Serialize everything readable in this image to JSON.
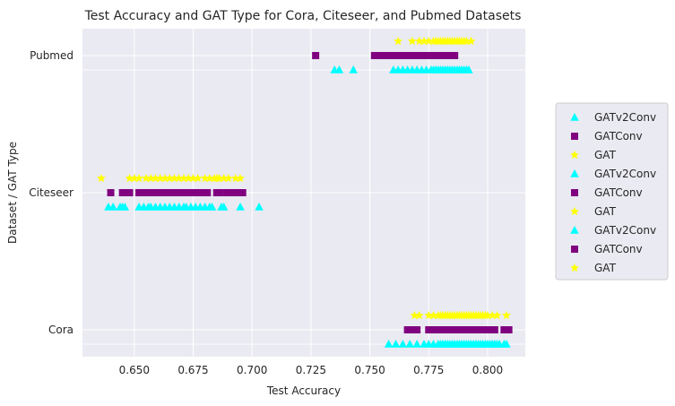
{
  "chart_data": {
    "type": "scatter",
    "title": "Test Accuracy and GAT Type for Cora, Citeseer, and Pubmed Datasets",
    "xlabel": "Test Accuracy",
    "ylabel": "Dataset / GAT Type",
    "xlim": [
      0.628,
      0.816
    ],
    "x_ticks": [
      0.65,
      0.675,
      0.7,
      0.725,
      0.75,
      0.775,
      0.8
    ],
    "x_tick_labels": [
      "0.650",
      "0.675",
      "0.700",
      "0.725",
      "0.750",
      "0.775",
      "0.800"
    ],
    "categories": [
      "Cora",
      "Citeseer",
      "Pubmed"
    ],
    "grid": true,
    "background": "#eaeaf2",
    "legend_position": "right",
    "series": [
      {
        "name": "GATv2Conv",
        "dataset": "Cora",
        "marker": "triangle",
        "color": "#00ffff",
        "offset": -1,
        "x": [
          0.758,
          0.761,
          0.764,
          0.767,
          0.77,
          0.773,
          0.775,
          0.777,
          0.779,
          0.78,
          0.781,
          0.782,
          0.783,
          0.784,
          0.785,
          0.786,
          0.787,
          0.788,
          0.789,
          0.79,
          0.791,
          0.792,
          0.793,
          0.794,
          0.795,
          0.796,
          0.797,
          0.798,
          0.799,
          0.8,
          0.801,
          0.802,
          0.803,
          0.804,
          0.805,
          0.807,
          0.808
        ]
      },
      {
        "name": "GATConv",
        "dataset": "Cora",
        "marker": "square",
        "color": "#800080",
        "offset": 0,
        "x": [
          0.766,
          0.767,
          0.768,
          0.769,
          0.77,
          0.775,
          0.776,
          0.777,
          0.778,
          0.779,
          0.78,
          0.781,
          0.782,
          0.783,
          0.784,
          0.785,
          0.786,
          0.787,
          0.788,
          0.789,
          0.79,
          0.791,
          0.792,
          0.793,
          0.794,
          0.795,
          0.796,
          0.797,
          0.798,
          0.799,
          0.8,
          0.801,
          0.802,
          0.803,
          0.807,
          0.808,
          0.809
        ]
      },
      {
        "name": "GAT",
        "dataset": "Cora",
        "marker": "star",
        "color": "#ffff00",
        "offset": 1,
        "x": [
          0.769,
          0.771,
          0.775,
          0.777,
          0.779,
          0.78,
          0.781,
          0.782,
          0.783,
          0.784,
          0.785,
          0.786,
          0.787,
          0.788,
          0.789,
          0.79,
          0.791,
          0.792,
          0.793,
          0.794,
          0.795,
          0.796,
          0.797,
          0.798,
          0.799,
          0.8,
          0.802,
          0.804,
          0.808
        ]
      },
      {
        "name": "GATv2Conv",
        "dataset": "Citeseer",
        "marker": "triangle",
        "color": "#00ffff",
        "offset": -1,
        "x": [
          0.639,
          0.641,
          0.644,
          0.645,
          0.646,
          0.652,
          0.654,
          0.656,
          0.657,
          0.659,
          0.661,
          0.663,
          0.665,
          0.667,
          0.669,
          0.671,
          0.672,
          0.674,
          0.676,
          0.678,
          0.68,
          0.682,
          0.683,
          0.687,
          0.688,
          0.695,
          0.703
        ]
      },
      {
        "name": "GATConv",
        "dataset": "Citeseer",
        "marker": "square",
        "color": "#800080",
        "offset": 0,
        "x": [
          0.64,
          0.645,
          0.646,
          0.648,
          0.652,
          0.653,
          0.655,
          0.656,
          0.657,
          0.658,
          0.659,
          0.66,
          0.661,
          0.662,
          0.663,
          0.664,
          0.665,
          0.666,
          0.667,
          0.668,
          0.669,
          0.67,
          0.671,
          0.672,
          0.673,
          0.674,
          0.675,
          0.676,
          0.677,
          0.678,
          0.679,
          0.68,
          0.681,
          0.685,
          0.686,
          0.689,
          0.69,
          0.692,
          0.694,
          0.696
        ]
      },
      {
        "name": "GAT",
        "dataset": "Citeseer",
        "marker": "star",
        "color": "#ffff00",
        "offset": 1,
        "x": [
          0.636,
          0.648,
          0.65,
          0.652,
          0.655,
          0.657,
          0.659,
          0.661,
          0.663,
          0.665,
          0.667,
          0.669,
          0.671,
          0.673,
          0.675,
          0.677,
          0.68,
          0.682,
          0.684,
          0.685,
          0.686,
          0.688,
          0.69,
          0.693,
          0.695
        ]
      },
      {
        "name": "GATv2Conv",
        "dataset": "Pubmed",
        "marker": "triangle",
        "color": "#00ffff",
        "offset": -1,
        "x": [
          0.735,
          0.737,
          0.743,
          0.76,
          0.762,
          0.764,
          0.766,
          0.768,
          0.77,
          0.772,
          0.774,
          0.776,
          0.777,
          0.778,
          0.779,
          0.78,
          0.781,
          0.782,
          0.783,
          0.784,
          0.785,
          0.786,
          0.787,
          0.788,
          0.789,
          0.79,
          0.791,
          0.792
        ]
      },
      {
        "name": "GATConv",
        "dataset": "Pubmed",
        "marker": "square",
        "color": "#800080",
        "offset": 0,
        "x": [
          0.727,
          0.752,
          0.753,
          0.754,
          0.755,
          0.756,
          0.757,
          0.758,
          0.759,
          0.76,
          0.761,
          0.762,
          0.763,
          0.764,
          0.765,
          0.766,
          0.767,
          0.768,
          0.769,
          0.77,
          0.771,
          0.772,
          0.773,
          0.774,
          0.775,
          0.776,
          0.777,
          0.778,
          0.779,
          0.78,
          0.781,
          0.782,
          0.783,
          0.784,
          0.785,
          0.786
        ]
      },
      {
        "name": "GAT",
        "dataset": "Pubmed",
        "marker": "star",
        "color": "#ffff00",
        "offset": 1,
        "x": [
          0.762,
          0.768,
          0.771,
          0.773,
          0.775,
          0.777,
          0.778,
          0.779,
          0.78,
          0.781,
          0.782,
          0.783,
          0.784,
          0.785,
          0.786,
          0.787,
          0.788,
          0.789,
          0.79,
          0.791,
          0.793
        ]
      }
    ],
    "legend": [
      {
        "label": "GATv2Conv",
        "marker": "triangle",
        "color": "#00ffff"
      },
      {
        "label": "GATConv",
        "marker": "square",
        "color": "#800080"
      },
      {
        "label": "GAT",
        "marker": "star",
        "color": "#ffff00"
      },
      {
        "label": "GATv2Conv",
        "marker": "triangle",
        "color": "#00ffff"
      },
      {
        "label": "GATConv",
        "marker": "square",
        "color": "#800080"
      },
      {
        "label": "GAT",
        "marker": "star",
        "color": "#ffff00"
      },
      {
        "label": "GATv2Conv",
        "marker": "triangle",
        "color": "#00ffff"
      },
      {
        "label": "GATConv",
        "marker": "square",
        "color": "#800080"
      },
      {
        "label": "GAT",
        "marker": "star",
        "color": "#ffff00"
      }
    ]
  }
}
